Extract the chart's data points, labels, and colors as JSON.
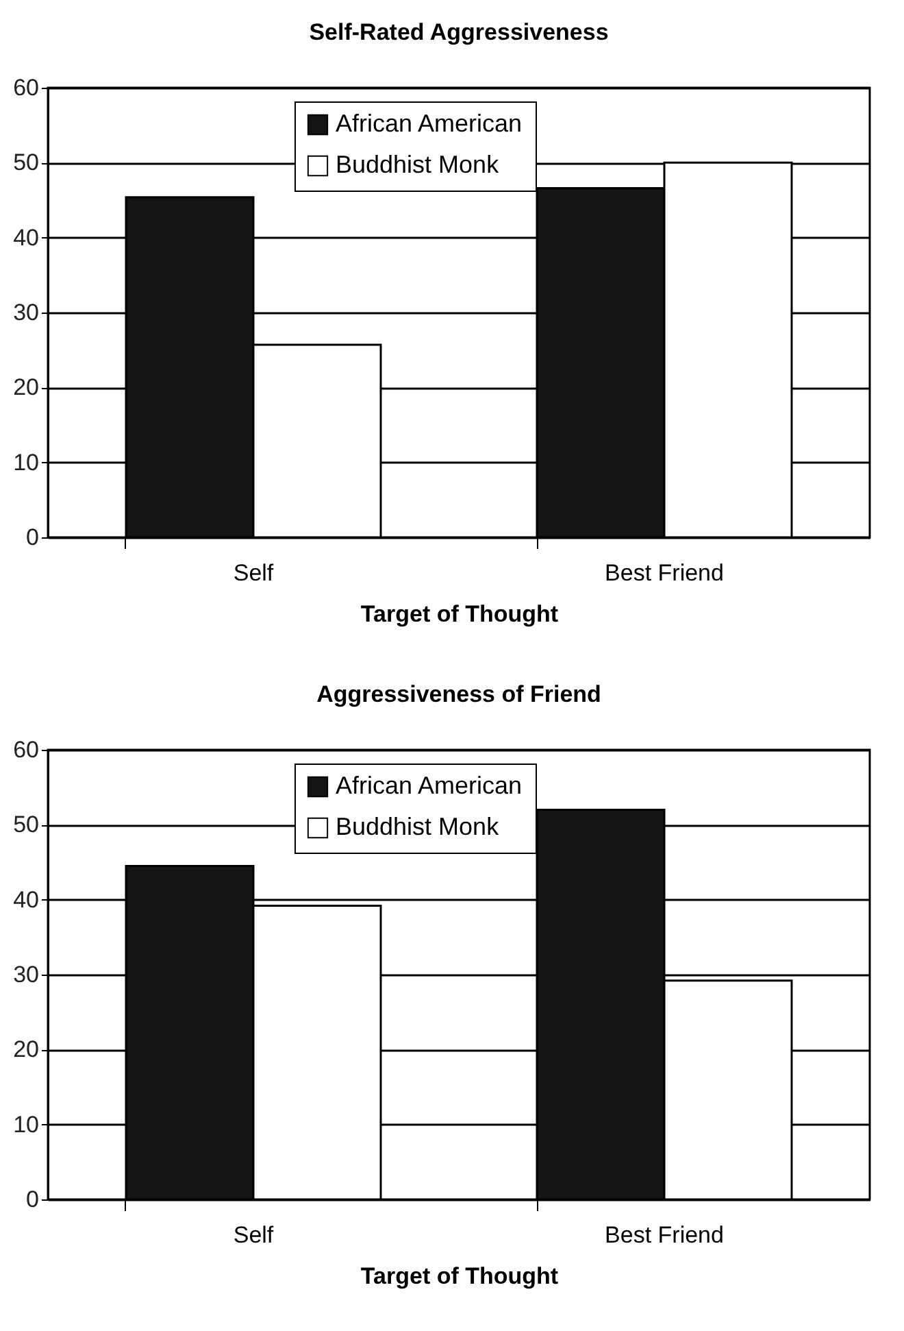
{
  "chart_data": [
    {
      "type": "bar",
      "title": "Self-Rated Aggressiveness",
      "xlabel": "Target of Thought",
      "categories": [
        "Self",
        "Best Friend"
      ],
      "series": [
        {
          "name": "African American",
          "color": "#141414",
          "values": [
            45.4,
            46.6
          ]
        },
        {
          "name": "Buddhist Monk",
          "color": "#ffffff",
          "values": [
            25.7,
            50.0
          ]
        }
      ],
      "ylim": [
        0,
        60
      ],
      "yticks": [
        0,
        10,
        20,
        30,
        40,
        50,
        60
      ],
      "grid": "y",
      "legend": "top"
    },
    {
      "type": "bar",
      "title": "Aggressiveness of Friend",
      "xlabel": "Target of Thought",
      "categories": [
        "Self",
        "Best Friend"
      ],
      "series": [
        {
          "name": "African American",
          "color": "#141414",
          "values": [
            44.5,
            52.0
          ]
        },
        {
          "name": "Buddhist Monk",
          "color": "#ffffff",
          "values": [
            39.2,
            29.2
          ]
        }
      ],
      "ylim": [
        0,
        60
      ],
      "yticks": [
        0,
        10,
        20,
        30,
        40,
        50,
        60
      ],
      "grid": "y",
      "legend": "top"
    }
  ]
}
